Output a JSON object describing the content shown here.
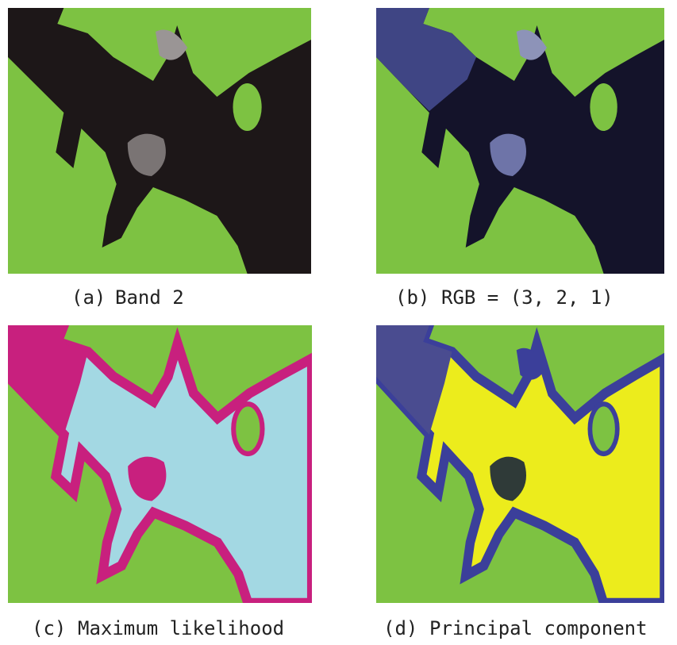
{
  "panels": [
    {
      "label": "(a)",
      "caption": "Band 2"
    },
    {
      "label": "(b)",
      "caption": "RGB = (3, 2, 1)"
    },
    {
      "label": "(c)",
      "caption": "Maximum likelihood"
    },
    {
      "label": "(d)",
      "caption": "Principal component"
    }
  ]
}
